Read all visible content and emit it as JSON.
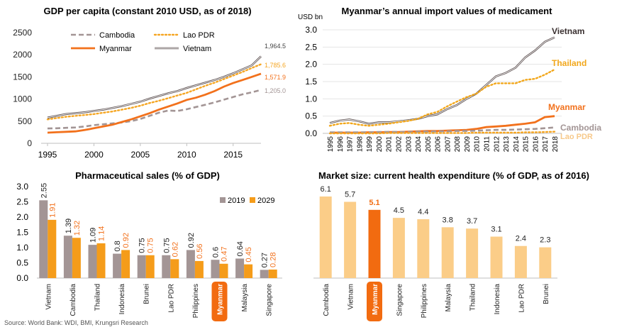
{
  "source": "Source: World Bank: WDI, BMI,  Krungsri Research",
  "colors": {
    "cambodia": "#a39595",
    "lao": "#f5a623",
    "myanmar": "#f2711c",
    "vietnam": "#5a4e4e",
    "thailand": "#f2a71b",
    "bar2019": "#a39595",
    "bar2029": "#f59c1a",
    "market": "#fbcd88",
    "marketHi": "#f26b10"
  },
  "chart_data": [
    {
      "id": "gdp",
      "type": "line",
      "title": "GDP per capita (constant 2010 USD, as of 2018)",
      "x": [
        1995,
        1996,
        1997,
        1998,
        1999,
        2000,
        2001,
        2002,
        2003,
        2004,
        2005,
        2006,
        2007,
        2008,
        2009,
        2010,
        2011,
        2012,
        2013,
        2014,
        2015,
        2016,
        2017,
        2018
      ],
      "xticks": [
        "1995",
        "2000",
        "2005",
        "2010",
        "2015"
      ],
      "yticks": [
        "0",
        "500",
        "1000",
        "1500",
        "2000",
        "2500"
      ],
      "ylim": [
        0,
        2500
      ],
      "series": [
        {
          "name": "Cambodia",
          "key": "cambodia",
          "values": [
            335,
            340,
            350,
            358,
            380,
            410,
            430,
            450,
            470,
            500,
            550,
            620,
            690,
            740,
            730,
            770,
            820,
            870,
            925,
            985,
            1045,
            1105,
            1150,
            1205.0
          ],
          "end_label": "1,205.0"
        },
        {
          "name": "Lao PDR",
          "key": "lao",
          "values": [
            540,
            570,
            600,
            620,
            640,
            660,
            690,
            720,
            760,
            800,
            850,
            910,
            960,
            1020,
            1080,
            1140,
            1220,
            1300,
            1370,
            1450,
            1530,
            1610,
            1700,
            1785.6
          ],
          "end_label": "1,785.6"
        },
        {
          "name": "Myanmar",
          "key": "myanmar",
          "values": [
            240,
            250,
            260,
            270,
            300,
            340,
            380,
            420,
            480,
            540,
            610,
            680,
            760,
            830,
            900,
            980,
            1030,
            1100,
            1180,
            1280,
            1360,
            1430,
            1500,
            1571.9
          ],
          "end_label": "1,571.9"
        },
        {
          "name": "Vietnam",
          "key": "vietnam",
          "values": [
            580,
            620,
            660,
            680,
            700,
            730,
            760,
            800,
            840,
            890,
            940,
            1010,
            1070,
            1130,
            1180,
            1250,
            1310,
            1370,
            1430,
            1500,
            1580,
            1670,
            1760,
            1964.5
          ],
          "end_label": "1,964.5"
        }
      ],
      "legend": "top"
    },
    {
      "id": "imports",
      "type": "line",
      "title": "Myanmar’s annual import values of medicament",
      "ylabel": "USD bn",
      "x": [
        1995,
        1996,
        1997,
        1998,
        1999,
        2000,
        2001,
        2002,
        2003,
        2004,
        2005,
        2006,
        2007,
        2008,
        2009,
        2010,
        2011,
        2012,
        2013,
        2014,
        2015,
        2016,
        2017,
        2018
      ],
      "xticks": [
        "1995",
        "1996",
        "1997",
        "1998",
        "1999",
        "2000",
        "2001",
        "2002",
        "2003",
        "2004",
        "2005",
        "2006",
        "2007",
        "2008",
        "2009",
        "2010",
        "2011",
        "2012",
        "2013",
        "2014",
        "2015",
        "2016",
        "2017",
        "2018"
      ],
      "yticks": [
        "0.0",
        "0.5",
        "1.0",
        "1.5",
        "2.0",
        "2.5",
        "3.0"
      ],
      "ylim": [
        0,
        3.0
      ],
      "series": [
        {
          "name": "Vietnam",
          "key": "vietnam",
          "values": [
            0.3,
            0.37,
            0.4,
            0.35,
            0.28,
            0.32,
            0.32,
            0.35,
            0.38,
            0.42,
            0.5,
            0.55,
            0.7,
            0.82,
            1.0,
            1.15,
            1.4,
            1.65,
            1.75,
            1.9,
            2.2,
            2.4,
            2.65,
            2.78
          ]
        },
        {
          "name": "Thailand",
          "key": "thailand",
          "values": [
            0.22,
            0.28,
            0.3,
            0.25,
            0.22,
            0.25,
            0.28,
            0.32,
            0.36,
            0.42,
            0.55,
            0.62,
            0.78,
            0.92,
            1.05,
            1.15,
            1.35,
            1.45,
            1.45,
            1.45,
            1.55,
            1.58,
            1.7,
            1.85
          ]
        },
        {
          "name": "Myanmar",
          "key": "myanmar",
          "values": [
            0.02,
            0.02,
            0.02,
            0.02,
            0.03,
            0.03,
            0.04,
            0.04,
            0.05,
            0.06,
            0.07,
            0.07,
            0.08,
            0.09,
            0.1,
            0.13,
            0.18,
            0.2,
            0.22,
            0.25,
            0.28,
            0.32,
            0.47,
            0.5
          ]
        },
        {
          "name": "Cambodia",
          "key": "cambodia",
          "values": [
            0.03,
            0.03,
            0.03,
            0.03,
            0.03,
            0.04,
            0.04,
            0.04,
            0.04,
            0.05,
            0.05,
            0.06,
            0.06,
            0.07,
            0.07,
            0.08,
            0.09,
            0.1,
            0.1,
            0.11,
            0.12,
            0.13,
            0.15,
            0.17
          ]
        },
        {
          "name": "Lao PDR",
          "key": "lao",
          "values": [
            0.0,
            0.0,
            0.0,
            0.0,
            0.0,
            0.0,
            0.01,
            0.01,
            0.01,
            0.01,
            0.01,
            0.01,
            0.01,
            0.01,
            0.01,
            0.02,
            0.02,
            0.02,
            0.02,
            0.02,
            0.03,
            0.03,
            0.04,
            0.05
          ]
        }
      ]
    },
    {
      "id": "pharma",
      "type": "bar",
      "title": "Pharmaceutical sales (% of GDP)",
      "categories": [
        "Vietnam",
        "Cambodia",
        "Thailand",
        "Indonesia",
        "Brunei",
        "Lao PDR",
        "Philippines",
        "Myanmar",
        "Malaysia",
        "Singapore"
      ],
      "highlight": "Myanmar",
      "yticks": [
        "0.0",
        "0.5",
        "1.0",
        "1.5",
        "2.0",
        "2.5",
        "3.0"
      ],
      "ylim": [
        0,
        3.0
      ],
      "series": [
        {
          "name": "2019",
          "key": "bar2019",
          "values": [
            2.55,
            1.39,
            1.09,
            0.8,
            0.75,
            0.75,
            0.92,
            0.6,
            0.64,
            0.27
          ],
          "labels": [
            "2.55",
            "1.39",
            "1.09",
            "0.8",
            "0.75",
            "0.75",
            "0.92",
            "0.6",
            "0.64",
            "0.27"
          ]
        },
        {
          "name": "2029",
          "key": "bar2029",
          "values": [
            1.91,
            1.32,
            1.14,
            0.92,
            0.75,
            0.62,
            0.56,
            0.47,
            0.45,
            0.28
          ],
          "labels": [
            "1.91",
            "1.32",
            "1.14",
            "0.92",
            "0.75",
            "0.62",
            "0.56",
            "0.47",
            "0.45",
            "0.28"
          ]
        }
      ],
      "legend": "top-right"
    },
    {
      "id": "market",
      "type": "bar",
      "title": "Market size: current health expenditure (% of GDP, as of 2016)",
      "categories": [
        "Cambodia",
        "Vietnam",
        "Myanmar",
        "Singapore",
        "Philippines",
        "Malaysia",
        "Thailand",
        "Indonesia",
        "Lao PDR",
        "Brunei"
      ],
      "values": [
        6.1,
        5.7,
        5.1,
        4.5,
        4.4,
        3.8,
        3.7,
        3.1,
        2.4,
        2.3
      ],
      "labels": [
        "6.1",
        "5.7",
        "5.1",
        "4.5",
        "4.4",
        "3.8",
        "3.7",
        "3.1",
        "2.4",
        "2.3"
      ],
      "highlight": "Myanmar",
      "ylim": [
        0,
        7
      ]
    }
  ]
}
